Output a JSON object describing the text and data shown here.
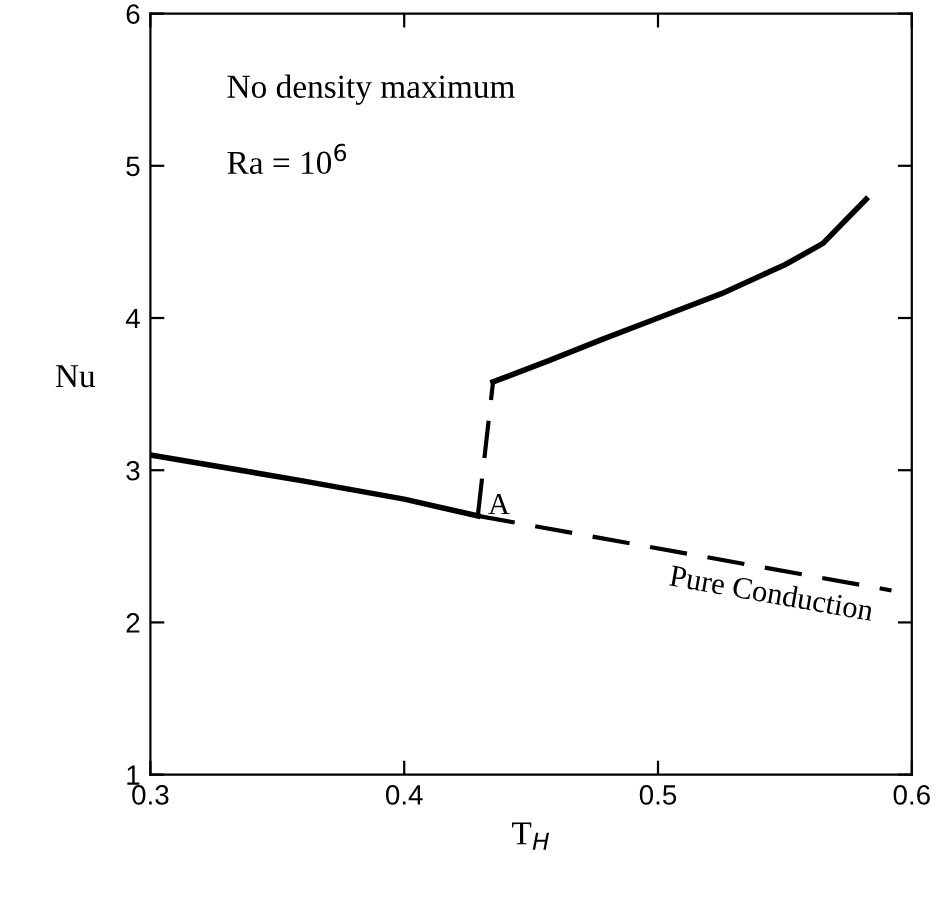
{
  "chart_data": {
    "type": "line",
    "xlabel": "T$_{H}$",
    "ylabel": "Nu",
    "xlim": [
      0.3,
      0.6
    ],
    "ylim": [
      1,
      6
    ],
    "xticks": [
      0.3,
      0.4,
      0.5,
      0.6
    ],
    "yticks": [
      1,
      2,
      3,
      4,
      5,
      6
    ],
    "grid": false,
    "legend": false,
    "marker": "none",
    "series": [
      {
        "color": "#000000",
        "line_style": "solid",
        "x": [
          0.3,
          0.36,
          0.4,
          0.429
        ],
        "values": [
          3.1,
          2.93,
          2.81,
          2.7
        ]
      },
      {
        "color": "#000000",
        "line_style": "dashed",
        "x": [
          0.429,
          0.592
        ],
        "values": [
          2.7,
          2.21
        ]
      },
      {
        "color": "#000000",
        "line_style": "dashed",
        "x": [
          0.429,
          0.435
        ],
        "values": [
          2.7,
          3.58
        ]
      },
      {
        "color": "#000000",
        "line_style": "solid",
        "x": [
          0.435,
          0.457,
          0.478,
          0.5,
          0.525,
          0.55,
          0.565,
          0.582
        ],
        "values": [
          3.58,
          3.72,
          3.86,
          4.0,
          4.16,
          4.35,
          4.49,
          4.78
        ]
      }
    ],
    "annotations": [
      "No density maximum",
      "Ra = 10$^{6}$",
      {
        "text": "A",
        "x": 0.433,
        "y": 2.76
      },
      "Pure Conduction"
    ]
  }
}
